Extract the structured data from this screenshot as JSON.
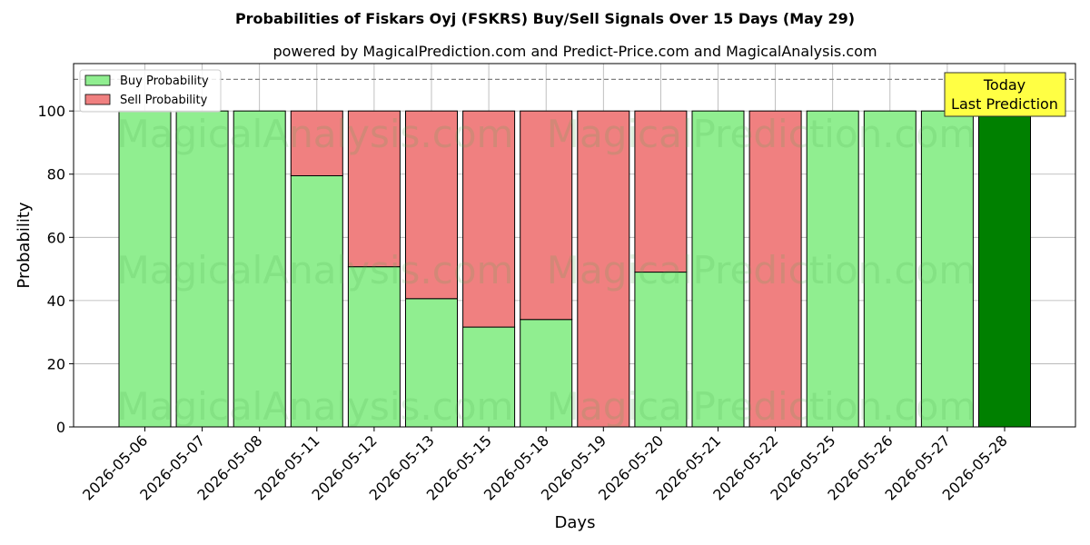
{
  "chart_data": {
    "type": "bar",
    "title": "Probabilities of Fiskars Oyj (FSKRS) Buy/Sell Signals Over 15 Days (May 29)",
    "subtitle": "powered by MagicalPrediction.com and Predict-Price.com and MagicalAnalysis.com",
    "xlabel": "Days",
    "ylabel": "Probability",
    "ylim": [
      0,
      115
    ],
    "yticks": [
      0,
      20,
      40,
      60,
      80,
      100
    ],
    "grid": true,
    "legend_position": "top-left",
    "reference_line": 110,
    "categories": [
      "2026-05-06",
      "2026-05-07",
      "2026-05-08",
      "2026-05-11",
      "2026-05-12",
      "2026-05-13",
      "2026-05-15",
      "2026-05-18",
      "2026-05-19",
      "2026-05-20",
      "2026-05-21",
      "2026-05-22",
      "2026-05-25",
      "2026-05-26",
      "2026-05-27",
      "2026-05-28"
    ],
    "series": [
      {
        "name": "Buy Probability",
        "color": "#90ee90",
        "values": [
          100,
          100,
          100,
          79.5,
          50.7,
          40.6,
          31.6,
          34.0,
          0,
          49.0,
          100,
          0,
          100,
          100,
          100,
          100
        ]
      },
      {
        "name": "Sell Probability",
        "color": "#f08080",
        "values": [
          0,
          0,
          0,
          20.5,
          49.3,
          59.4,
          68.4,
          66.0,
          100,
          51.0,
          0,
          100,
          0,
          0,
          0,
          0
        ]
      }
    ],
    "highlight_color": "#008000",
    "annotation": {
      "lines": [
        "Today",
        "Last Prediction"
      ],
      "color": "#ffff44"
    },
    "watermarks": [
      "MagicalAnalysis.com",
      "MagicalPrediction.com"
    ]
  }
}
